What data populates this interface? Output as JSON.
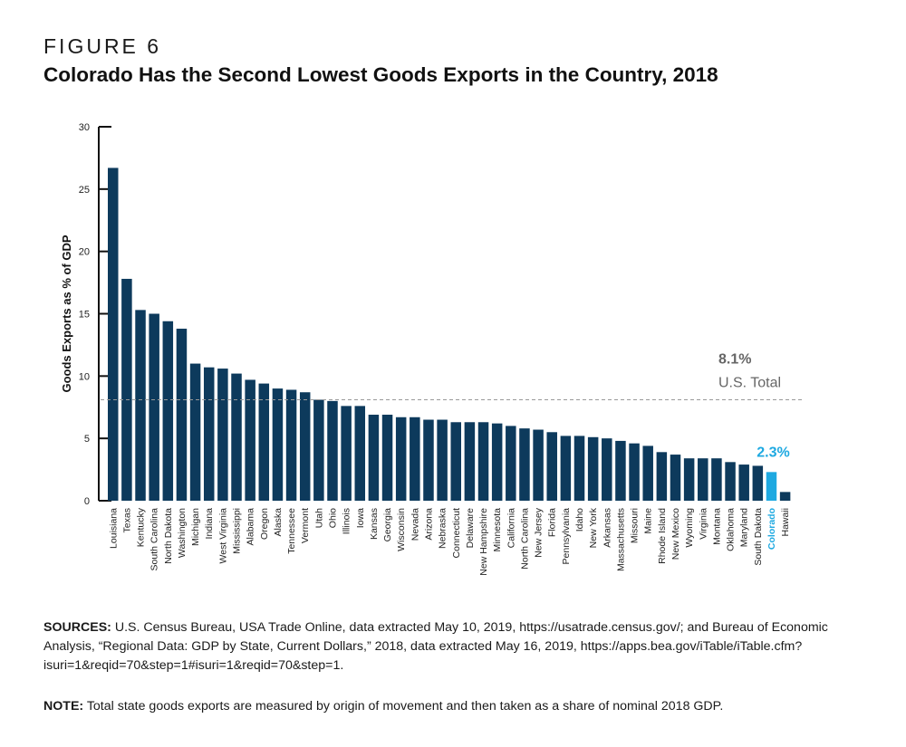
{
  "figure": {
    "label": "FIGURE 6",
    "title": "Colorado Has the Second Lowest Goods Exports in the Country, 2018"
  },
  "colors": {
    "bar": "#0d3a5c",
    "highlight": "#1ea9e1",
    "reference": "#999999",
    "reference_text": "#666666"
  },
  "chart_data": {
    "type": "bar",
    "ylabel": "Goods Exports as % of GDP",
    "xlabel": "",
    "ylim": [
      0,
      30
    ],
    "yticks": [
      0,
      5,
      10,
      15,
      20,
      25,
      30
    ],
    "grid": false,
    "categories": [
      "Louisiana",
      "Texas",
      "Kentucky",
      "South Carolina",
      "North Dakota",
      "Washington",
      "Michigan",
      "Indiana",
      "West Virginia",
      "Mississippi",
      "Alabama",
      "Oregon",
      "Alaska",
      "Tennessee",
      "Vermont",
      "Utah",
      "Ohio",
      "Illinois",
      "Iowa",
      "Kansas",
      "Georgia",
      "Wisconsin",
      "Nevada",
      "Arizona",
      "Nebraska",
      "Connecticut",
      "Delaware",
      "New Hampshire",
      "Minnesota",
      "California",
      "North Carolina",
      "New Jersey",
      "Florida",
      "Pennsylvania",
      "Idaho",
      "New York",
      "Arkansas",
      "Massachusetts",
      "Missouri",
      "Maine",
      "Rhode Island",
      "New Mexico",
      "Wyoming",
      "Virginia",
      "Montana",
      "Oklahoma",
      "Maryland",
      "South Dakota",
      "Colorado",
      "Hawaii"
    ],
    "values": [
      26.7,
      17.8,
      15.3,
      15.0,
      14.4,
      13.8,
      11.0,
      10.7,
      10.6,
      10.2,
      9.7,
      9.4,
      9.0,
      8.9,
      8.7,
      8.1,
      8.0,
      7.6,
      7.6,
      6.9,
      6.9,
      6.7,
      6.7,
      6.5,
      6.5,
      6.3,
      6.3,
      6.3,
      6.2,
      6.0,
      5.8,
      5.7,
      5.5,
      5.2,
      5.2,
      5.1,
      5.0,
      4.8,
      4.6,
      4.4,
      3.9,
      3.7,
      3.4,
      3.4,
      3.4,
      3.1,
      2.9,
      2.8,
      2.3,
      0.7
    ],
    "highlight": {
      "category": "Colorado",
      "label": "2.3%"
    },
    "reference_line": {
      "value": 8.1,
      "label": "8.1%",
      "sublabel": "U.S. Total"
    }
  },
  "sources": {
    "heading": "SOURCES:",
    "text": " U.S. Census Bureau, USA Trade Online, data extracted May 10, 2019, https://usatrade.census.gov/; and Bureau of Economic Analysis, “Regional Data: GDP by State, Current Dollars,” 2018, data extracted May 16, 2019, https://apps.bea.gov/iTable/iTable.cfm?isuri=1&reqid=70&step=1#isuri=1&reqid=70&step=1."
  },
  "note": {
    "heading": "NOTE:",
    "text": " Total state goods exports are measured by origin of movement and then taken as a share of nominal 2018 GDP."
  }
}
